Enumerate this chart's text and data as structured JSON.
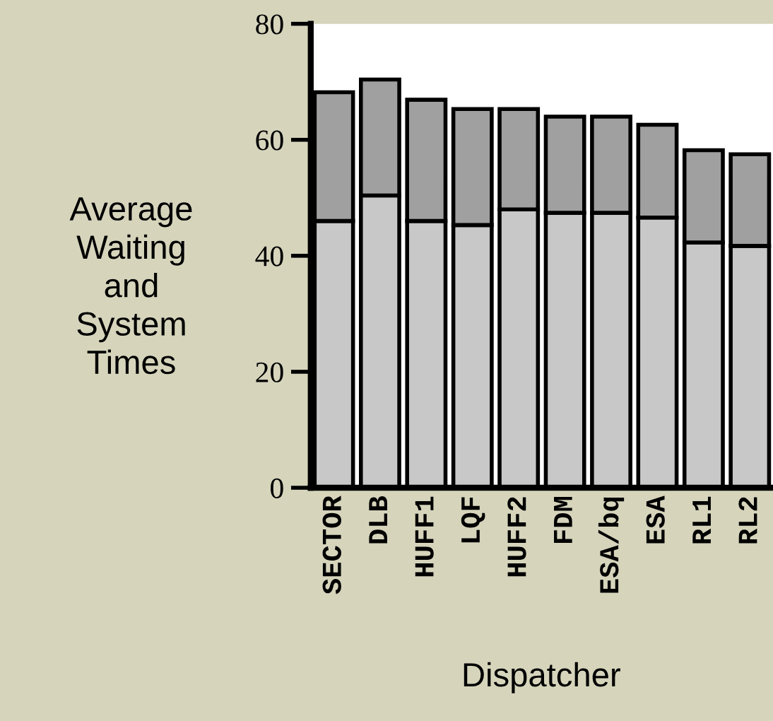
{
  "chart_data": {
    "type": "bar",
    "stacked": true,
    "xlabel": "Dispatcher",
    "ylabel": "Average\nWaiting\nand\nSystem\nTimes",
    "categories": [
      "SECTOR",
      "DLB",
      "HUFF1",
      "LQF",
      "HUFF2",
      "FDM",
      "ESA/bq",
      "ESA",
      "RL1",
      "RL2"
    ],
    "series": [
      {
        "color": "#c8c8c8",
        "values": [
          46.0,
          50.4,
          46.0,
          45.3,
          48.0,
          47.4,
          47.4,
          46.6,
          42.3,
          41.7
        ]
      },
      {
        "color": "#a0a0a0",
        "values": [
          22.2,
          20.0,
          20.9,
          20.0,
          17.3,
          16.6,
          16.6,
          16.0,
          15.9,
          15.8
        ]
      }
    ],
    "ylim": [
      0,
      80
    ],
    "yticks": [
      0,
      20,
      40,
      60,
      80
    ],
    "grid": false,
    "legend": false
  }
}
